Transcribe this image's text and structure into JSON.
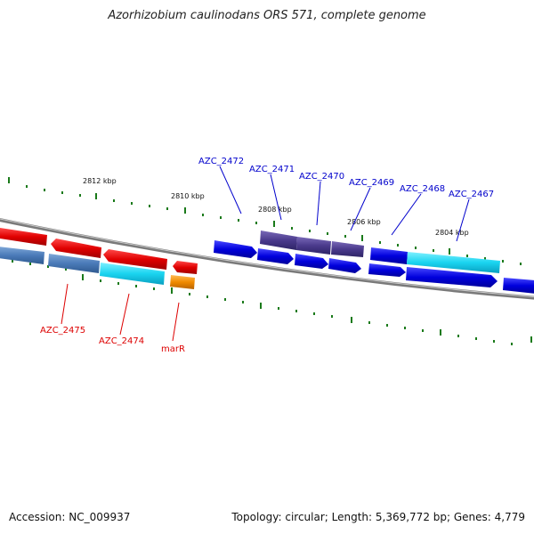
{
  "header": {
    "title": "Azorhizobium caulinodans ORS 571, complete genome"
  },
  "footer": {
    "accession": "Accession: NC_009937",
    "topology": "Topology: circular; Length: 5,369,772 bp; Genes: 4,779"
  },
  "ruler": {
    "labels": [
      "2812 kbp",
      "2810 kbp",
      "2808 kbp",
      "2806 kbp",
      "2804 kbp"
    ]
  },
  "colors": {
    "backbone": "#888888",
    "tick": "#1a7a1a",
    "red": "#ee0000",
    "steel": "#4a7ab8",
    "cyan": "#1ad4f0",
    "orange": "#f08a00",
    "blue": "#0000dd",
    "purple": "#4a3a8c",
    "label_blue": "#0000cc",
    "label_red": "#dd0000"
  },
  "gene_labels": {
    "AZC_2472": "AZC_2472",
    "AZC_2471": "AZC_2471",
    "AZC_2470": "AZC_2470",
    "AZC_2469": "AZC_2469",
    "AZC_2468": "AZC_2468",
    "AZC_2467": "AZC_2467",
    "AZC_2475": "AZC_2475",
    "AZC_2474": "AZC_2474",
    "marR": "marR"
  }
}
